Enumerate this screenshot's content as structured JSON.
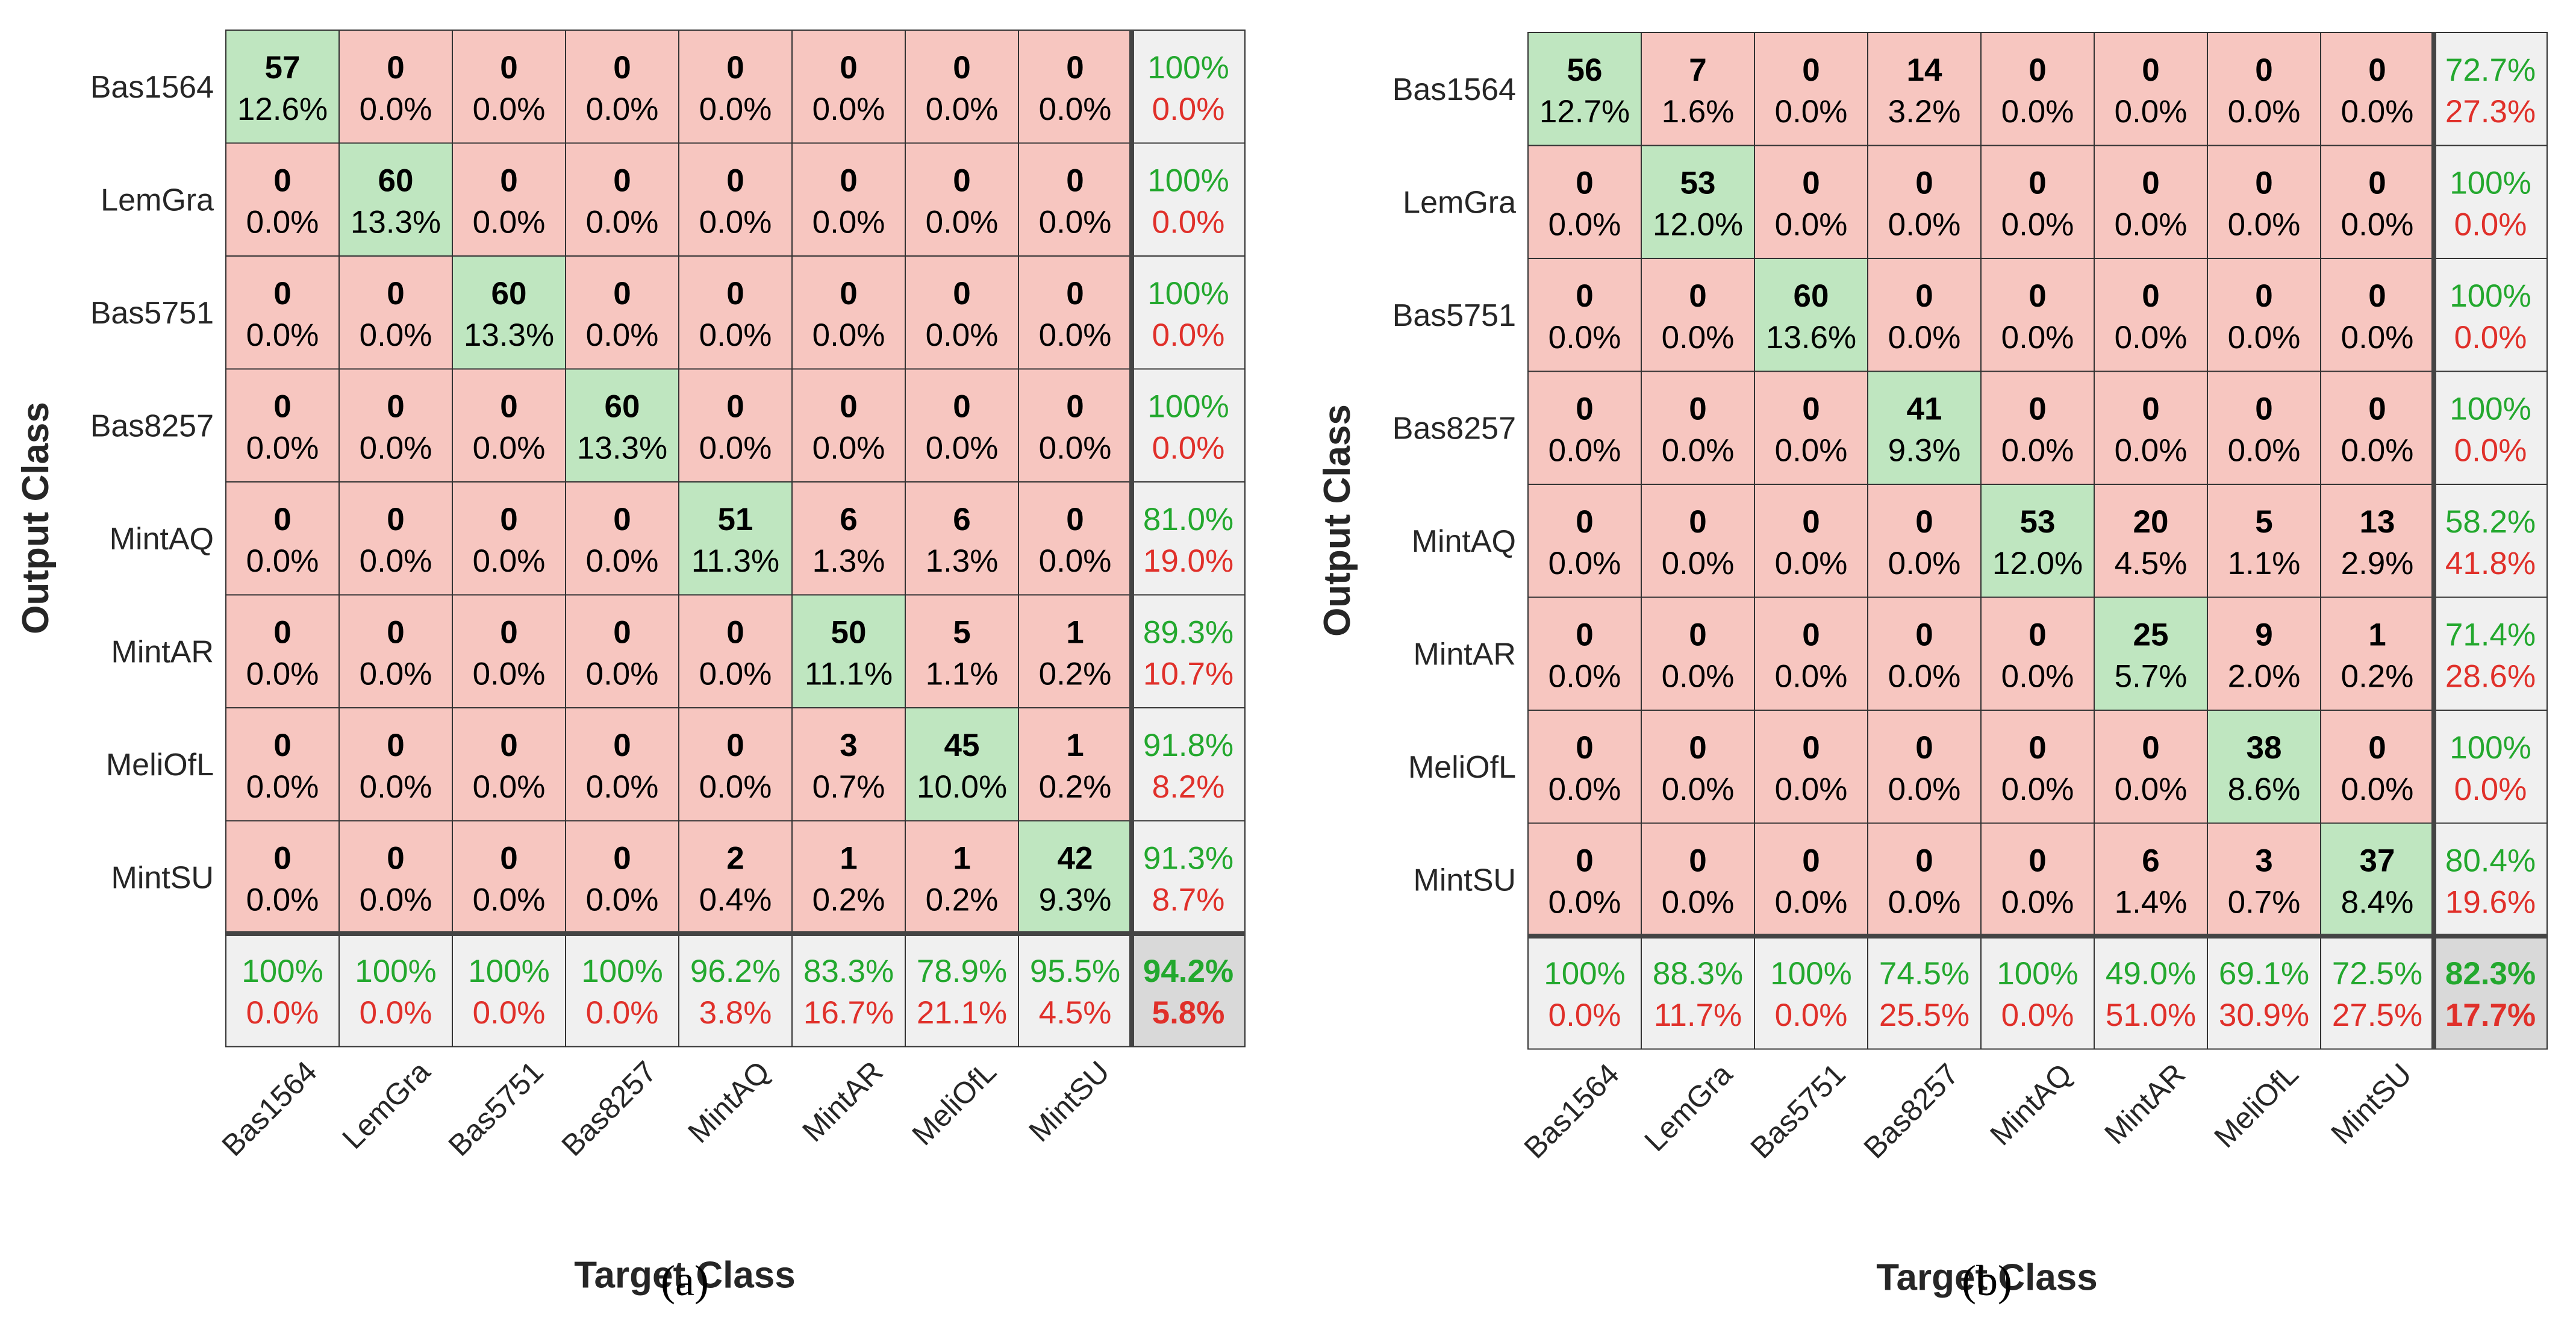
{
  "colors": {
    "correct_cell": "#bfe6c0",
    "wrong_cell": "#f7c6c0",
    "summary_cell": "#f0f0f0",
    "overall_cell": "#d9d9d9",
    "accuracy_text": "#23a82e",
    "error_text": "#e0302a",
    "grid_line": "#333333"
  },
  "chart_data": [
    {
      "type": "heatmap",
      "panel_label": "(a)",
      "xlabel": "Target Class",
      "ylabel": "Output Class",
      "classes": [
        "Bas1564",
        "LemGra",
        "Bas5751",
        "Bas8257",
        "MintAQ",
        "MintAR",
        "MeliOfL",
        "MintSU"
      ],
      "counts": [
        [
          57,
          0,
          0,
          0,
          0,
          0,
          0,
          0
        ],
        [
          0,
          60,
          0,
          0,
          0,
          0,
          0,
          0
        ],
        [
          0,
          0,
          60,
          0,
          0,
          0,
          0,
          0
        ],
        [
          0,
          0,
          0,
          60,
          0,
          0,
          0,
          0
        ],
        [
          0,
          0,
          0,
          0,
          51,
          6,
          6,
          0
        ],
        [
          0,
          0,
          0,
          0,
          0,
          50,
          5,
          1
        ],
        [
          0,
          0,
          0,
          0,
          0,
          3,
          45,
          1
        ],
        [
          0,
          0,
          0,
          0,
          2,
          1,
          1,
          42
        ]
      ],
      "percents": [
        [
          "12.6%",
          "0.0%",
          "0.0%",
          "0.0%",
          "0.0%",
          "0.0%",
          "0.0%",
          "0.0%"
        ],
        [
          "0.0%",
          "13.3%",
          "0.0%",
          "0.0%",
          "0.0%",
          "0.0%",
          "0.0%",
          "0.0%"
        ],
        [
          "0.0%",
          "0.0%",
          "13.3%",
          "0.0%",
          "0.0%",
          "0.0%",
          "0.0%",
          "0.0%"
        ],
        [
          "0.0%",
          "0.0%",
          "0.0%",
          "13.3%",
          "0.0%",
          "0.0%",
          "0.0%",
          "0.0%"
        ],
        [
          "0.0%",
          "0.0%",
          "0.0%",
          "0.0%",
          "11.3%",
          "1.3%",
          "1.3%",
          "0.0%"
        ],
        [
          "0.0%",
          "0.0%",
          "0.0%",
          "0.0%",
          "0.0%",
          "11.1%",
          "1.1%",
          "0.2%"
        ],
        [
          "0.0%",
          "0.0%",
          "0.0%",
          "0.0%",
          "0.0%",
          "0.7%",
          "10.0%",
          "0.2%"
        ],
        [
          "0.0%",
          "0.0%",
          "0.0%",
          "0.0%",
          "0.4%",
          "0.2%",
          "0.2%",
          "9.3%"
        ]
      ],
      "row_summary": [
        [
          "100%",
          "0.0%"
        ],
        [
          "100%",
          "0.0%"
        ],
        [
          "100%",
          "0.0%"
        ],
        [
          "100%",
          "0.0%"
        ],
        [
          "81.0%",
          "19.0%"
        ],
        [
          "89.3%",
          "10.7%"
        ],
        [
          "91.8%",
          "8.2%"
        ],
        [
          "91.3%",
          "8.7%"
        ]
      ],
      "col_summary": [
        [
          "100%",
          "0.0%"
        ],
        [
          "100%",
          "0.0%"
        ],
        [
          "100%",
          "0.0%"
        ],
        [
          "100%",
          "0.0%"
        ],
        [
          "96.2%",
          "3.8%"
        ],
        [
          "83.3%",
          "16.7%"
        ],
        [
          "78.9%",
          "21.1%"
        ],
        [
          "95.5%",
          "4.5%"
        ]
      ],
      "overall": [
        "94.2%",
        "5.8%"
      ]
    },
    {
      "type": "heatmap",
      "panel_label": "(b)",
      "xlabel": "Target Class",
      "ylabel": "Output Class",
      "classes": [
        "Bas1564",
        "LemGra",
        "Bas5751",
        "Bas8257",
        "MintAQ",
        "MintAR",
        "MeliOfL",
        "MintSU"
      ],
      "counts": [
        [
          56,
          7,
          0,
          14,
          0,
          0,
          0,
          0
        ],
        [
          0,
          53,
          0,
          0,
          0,
          0,
          0,
          0
        ],
        [
          0,
          0,
          60,
          0,
          0,
          0,
          0,
          0
        ],
        [
          0,
          0,
          0,
          41,
          0,
          0,
          0,
          0
        ],
        [
          0,
          0,
          0,
          0,
          53,
          20,
          5,
          13
        ],
        [
          0,
          0,
          0,
          0,
          0,
          25,
          9,
          1
        ],
        [
          0,
          0,
          0,
          0,
          0,
          0,
          38,
          0
        ],
        [
          0,
          0,
          0,
          0,
          0,
          6,
          3,
          37
        ]
      ],
      "percents": [
        [
          "12.7%",
          "1.6%",
          "0.0%",
          "3.2%",
          "0.0%",
          "0.0%",
          "0.0%",
          "0.0%"
        ],
        [
          "0.0%",
          "12.0%",
          "0.0%",
          "0.0%",
          "0.0%",
          "0.0%",
          "0.0%",
          "0.0%"
        ],
        [
          "0.0%",
          "0.0%",
          "13.6%",
          "0.0%",
          "0.0%",
          "0.0%",
          "0.0%",
          "0.0%"
        ],
        [
          "0.0%",
          "0.0%",
          "0.0%",
          "9.3%",
          "0.0%",
          "0.0%",
          "0.0%",
          "0.0%"
        ],
        [
          "0.0%",
          "0.0%",
          "0.0%",
          "0.0%",
          "12.0%",
          "4.5%",
          "1.1%",
          "2.9%"
        ],
        [
          "0.0%",
          "0.0%",
          "0.0%",
          "0.0%",
          "0.0%",
          "5.7%",
          "2.0%",
          "0.2%"
        ],
        [
          "0.0%",
          "0.0%",
          "0.0%",
          "0.0%",
          "0.0%",
          "0.0%",
          "8.6%",
          "0.0%"
        ],
        [
          "0.0%",
          "0.0%",
          "0.0%",
          "0.0%",
          "0.0%",
          "1.4%",
          "0.7%",
          "8.4%"
        ]
      ],
      "row_summary": [
        [
          "72.7%",
          "27.3%"
        ],
        [
          "100%",
          "0.0%"
        ],
        [
          "100%",
          "0.0%"
        ],
        [
          "100%",
          "0.0%"
        ],
        [
          "58.2%",
          "41.8%"
        ],
        [
          "71.4%",
          "28.6%"
        ],
        [
          "100%",
          "0.0%"
        ],
        [
          "80.4%",
          "19.6%"
        ]
      ],
      "col_summary": [
        [
          "100%",
          "0.0%"
        ],
        [
          "88.3%",
          "11.7%"
        ],
        [
          "100%",
          "0.0%"
        ],
        [
          "74.5%",
          "25.5%"
        ],
        [
          "100%",
          "0.0%"
        ],
        [
          "49.0%",
          "51.0%"
        ],
        [
          "69.1%",
          "30.9%"
        ],
        [
          "72.5%",
          "27.5%"
        ]
      ],
      "overall": [
        "82.3%",
        "17.7%"
      ]
    }
  ]
}
